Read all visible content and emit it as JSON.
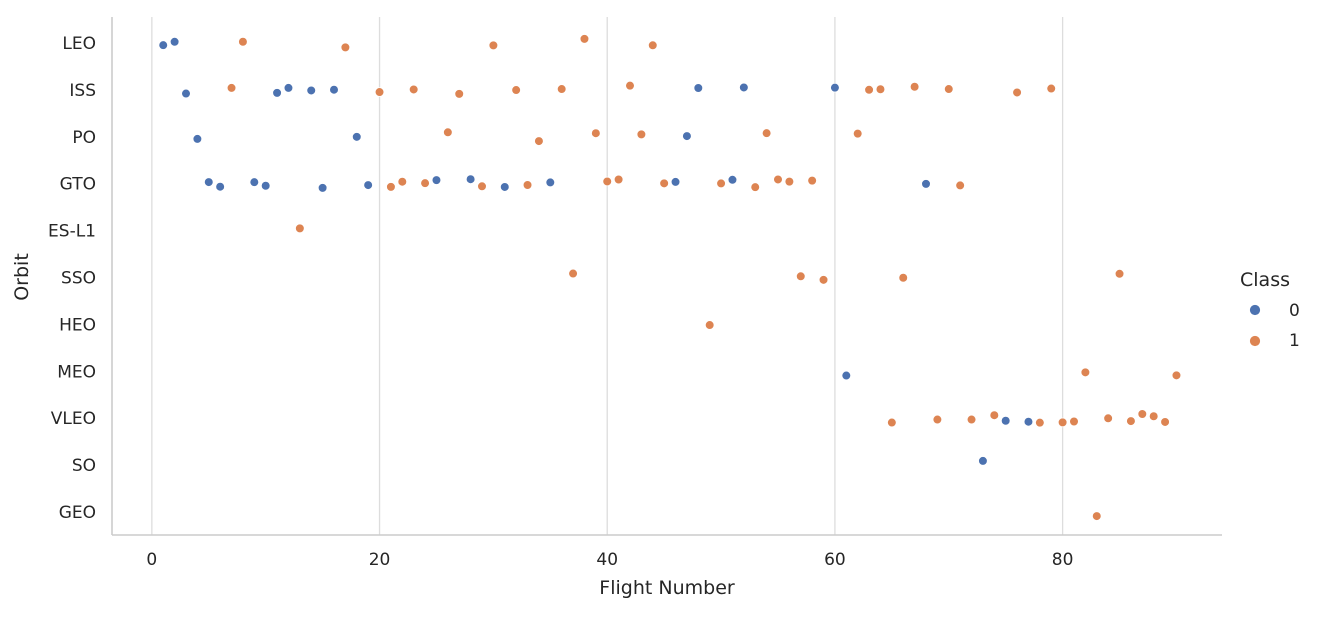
{
  "chart_data": {
    "type": "scatter",
    "xlabel": "Flight Number",
    "ylabel": "Orbit",
    "x_ticks": [
      0,
      20,
      40,
      60,
      80
    ],
    "xlim": [
      -3.5,
      94
    ],
    "grid": "vertical",
    "y_categories": [
      "LEO",
      "ISS",
      "PO",
      "GTO",
      "ES-L1",
      "SSO",
      "HEO",
      "MEO",
      "VLEO",
      "SO",
      "GEO"
    ],
    "legend": {
      "title": "Class",
      "placement": "right",
      "entries": [
        {
          "label": "0",
          "color": "#4c72b0"
        },
        {
          "label": "1",
          "color": "#dd8452"
        }
      ]
    },
    "series": [
      {
        "name": "0",
        "color": "#4c72b0",
        "points": [
          {
            "x": 1,
            "y": "LEO"
          },
          {
            "x": 2,
            "y": "LEO"
          },
          {
            "x": 3,
            "y": "ISS"
          },
          {
            "x": 11,
            "y": "ISS"
          },
          {
            "x": 12,
            "y": "ISS"
          },
          {
            "x": 14,
            "y": "ISS"
          },
          {
            "x": 16,
            "y": "ISS"
          },
          {
            "x": 48,
            "y": "ISS"
          },
          {
            "x": 52,
            "y": "ISS"
          },
          {
            "x": 60,
            "y": "ISS"
          },
          {
            "x": 4,
            "y": "PO"
          },
          {
            "x": 18,
            "y": "PO"
          },
          {
            "x": 47,
            "y": "PO"
          },
          {
            "x": 5,
            "y": "GTO"
          },
          {
            "x": 6,
            "y": "GTO"
          },
          {
            "x": 9,
            "y": "GTO"
          },
          {
            "x": 10,
            "y": "GTO"
          },
          {
            "x": 15,
            "y": "GTO"
          },
          {
            "x": 19,
            "y": "GTO"
          },
          {
            "x": 25,
            "y": "GTO"
          },
          {
            "x": 28,
            "y": "GTO"
          },
          {
            "x": 31,
            "y": "GTO"
          },
          {
            "x": 35,
            "y": "GTO"
          },
          {
            "x": 46,
            "y": "GTO"
          },
          {
            "x": 51,
            "y": "GTO"
          },
          {
            "x": 68,
            "y": "GTO"
          },
          {
            "x": 61,
            "y": "MEO"
          },
          {
            "x": 75,
            "y": "VLEO"
          },
          {
            "x": 77,
            "y": "VLEO"
          },
          {
            "x": 73,
            "y": "SO"
          }
        ]
      },
      {
        "name": "1",
        "color": "#dd8452",
        "points": [
          {
            "x": 8,
            "y": "LEO"
          },
          {
            "x": 17,
            "y": "LEO"
          },
          {
            "x": 30,
            "y": "LEO"
          },
          {
            "x": 38,
            "y": "LEO"
          },
          {
            "x": 44,
            "y": "LEO"
          },
          {
            "x": 7,
            "y": "ISS"
          },
          {
            "x": 20,
            "y": "ISS"
          },
          {
            "x": 23,
            "y": "ISS"
          },
          {
            "x": 27,
            "y": "ISS"
          },
          {
            "x": 32,
            "y": "ISS"
          },
          {
            "x": 36,
            "y": "ISS"
          },
          {
            "x": 42,
            "y": "ISS"
          },
          {
            "x": 63,
            "y": "ISS"
          },
          {
            "x": 64,
            "y": "ISS"
          },
          {
            "x": 67,
            "y": "ISS"
          },
          {
            "x": 70,
            "y": "ISS"
          },
          {
            "x": 76,
            "y": "ISS"
          },
          {
            "x": 79,
            "y": "ISS"
          },
          {
            "x": 26,
            "y": "PO"
          },
          {
            "x": 34,
            "y": "PO"
          },
          {
            "x": 39,
            "y": "PO"
          },
          {
            "x": 43,
            "y": "PO"
          },
          {
            "x": 54,
            "y": "PO"
          },
          {
            "x": 62,
            "y": "PO"
          },
          {
            "x": 21,
            "y": "GTO"
          },
          {
            "x": 22,
            "y": "GTO"
          },
          {
            "x": 24,
            "y": "GTO"
          },
          {
            "x": 29,
            "y": "GTO"
          },
          {
            "x": 33,
            "y": "GTO"
          },
          {
            "x": 40,
            "y": "GTO"
          },
          {
            "x": 41,
            "y": "GTO"
          },
          {
            "x": 45,
            "y": "GTO"
          },
          {
            "x": 50,
            "y": "GTO"
          },
          {
            "x": 53,
            "y": "GTO"
          },
          {
            "x": 55,
            "y": "GTO"
          },
          {
            "x": 56,
            "y": "GTO"
          },
          {
            "x": 58,
            "y": "GTO"
          },
          {
            "x": 71,
            "y": "GTO"
          },
          {
            "x": 13,
            "y": "ES-L1"
          },
          {
            "x": 37,
            "y": "SSO"
          },
          {
            "x": 57,
            "y": "SSO"
          },
          {
            "x": 59,
            "y": "SSO"
          },
          {
            "x": 66,
            "y": "SSO"
          },
          {
            "x": 85,
            "y": "SSO"
          },
          {
            "x": 49,
            "y": "HEO"
          },
          {
            "x": 82,
            "y": "MEO"
          },
          {
            "x": 90,
            "y": "MEO"
          },
          {
            "x": 65,
            "y": "VLEO"
          },
          {
            "x": 69,
            "y": "VLEO"
          },
          {
            "x": 72,
            "y": "VLEO"
          },
          {
            "x": 74,
            "y": "VLEO"
          },
          {
            "x": 78,
            "y": "VLEO"
          },
          {
            "x": 80,
            "y": "VLEO"
          },
          {
            "x": 81,
            "y": "VLEO"
          },
          {
            "x": 84,
            "y": "VLEO"
          },
          {
            "x": 86,
            "y": "VLEO"
          },
          {
            "x": 87,
            "y": "VLEO"
          },
          {
            "x": 88,
            "y": "VLEO"
          },
          {
            "x": 89,
            "y": "VLEO"
          },
          {
            "x": 83,
            "y": "GEO"
          }
        ]
      }
    ]
  }
}
